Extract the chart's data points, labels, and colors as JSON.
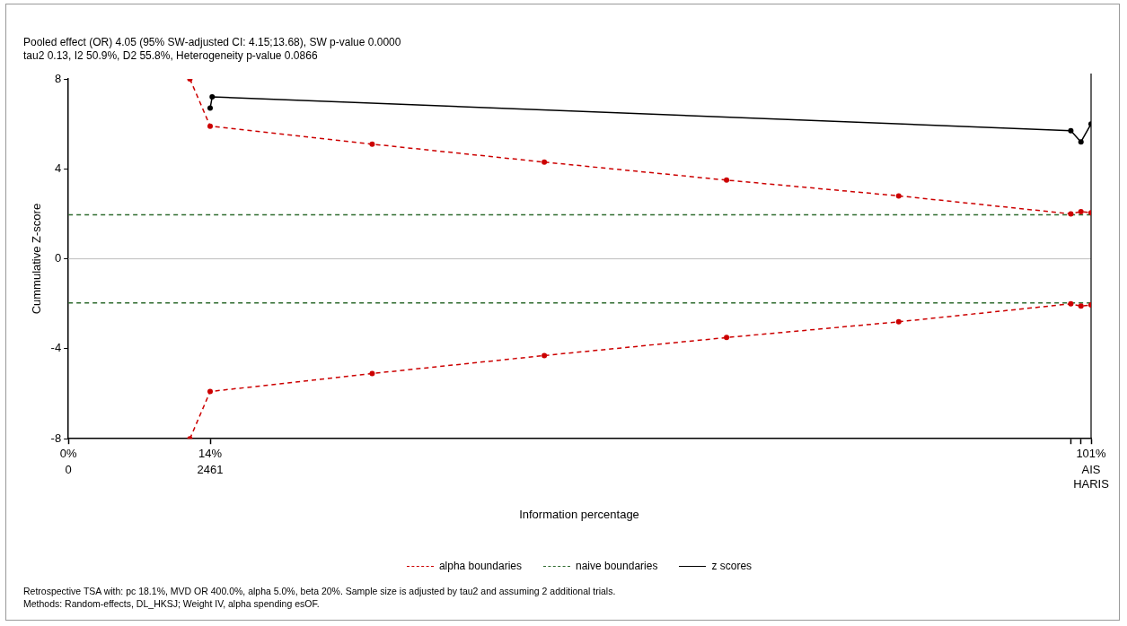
{
  "chart_data": {
    "type": "line",
    "title": "Pooled effect (OR) 4.05 (95% SW-adjusted CI: 4.15;13.68), SW p-value 0.0000",
    "subtitle": "tau2 0.13, I2 50.9%, D2 55.8%, Heterogeneity p-value 0.0866",
    "xlabel": "Information percentage",
    "ylabel": "Cummulative Z-score",
    "xlim": [
      0,
      101
    ],
    "xticks": [
      {
        "value": 0,
        "label": "0%"
      },
      {
        "value": 14,
        "label": "14%"
      },
      {
        "value": 99,
        "label": null
      },
      {
        "value": 100,
        "label": null
      },
      {
        "value": 101,
        "label": "101%"
      }
    ],
    "x2lim": [
      0,
      17756
    ],
    "x2ticks": [
      0,
      2461,
      {
        "value": 17756,
        "label": "AIS\nHARIS"
      }
    ],
    "ylim": [
      -8,
      8
    ],
    "yticks": [
      -8,
      -4,
      0,
      4,
      8
    ],
    "grid": false,
    "legend": "bottom",
    "ref_lines": [
      {
        "axis": "y",
        "value": 0,
        "color": "#bebebe"
      }
    ],
    "series": [
      {
        "name": "alpha boundaries",
        "color": "#cc0000",
        "line_style": "dashed",
        "marker": "circle",
        "x": [
          12,
          14,
          30,
          47,
          65,
          82,
          99,
          100,
          101
        ],
        "values": [
          8,
          5.9,
          5.1,
          4.3,
          3.5,
          2.8,
          2.0,
          2.1,
          2.05
        ]
      },
      {
        "color": "#cc0000",
        "line_style": "dashed",
        "marker": "circle",
        "x": [
          12,
          14,
          30,
          47,
          65,
          82,
          99,
          100,
          101
        ],
        "values": [
          -8,
          -5.9,
          -5.1,
          -4.3,
          -3.5,
          -2.8,
          -2.0,
          -2.1,
          -2.05
        ]
      },
      {
        "name": "naive boundaries",
        "color": "#2e6b2e",
        "line_style": "dashed",
        "marker": "none",
        "x": [
          0,
          101
        ],
        "values": [
          1.96,
          1.96
        ]
      },
      {
        "color": "#2e6b2e",
        "line_style": "dashed",
        "marker": "none",
        "x": [
          0,
          101
        ],
        "values": [
          -1.96,
          -1.96
        ]
      },
      {
        "name": "z scores",
        "color": "#000000",
        "line_style": "solid",
        "marker": "circle",
        "x": [
          14,
          14.2,
          99,
          100,
          101
        ],
        "values": [
          6.7,
          7.2,
          5.7,
          5.2,
          6.0
        ]
      }
    ],
    "annotations": [
      "Retrospective TSA with: pc 18.1%, MVD OR 400.0%, alpha 5.0%, beta 20%. Sample size is adjusted by tau2 and assuming 2 additional trials.",
      "Methods: Random-effects, DL_HKSJ; Weight IV, alpha spending esOF."
    ]
  }
}
